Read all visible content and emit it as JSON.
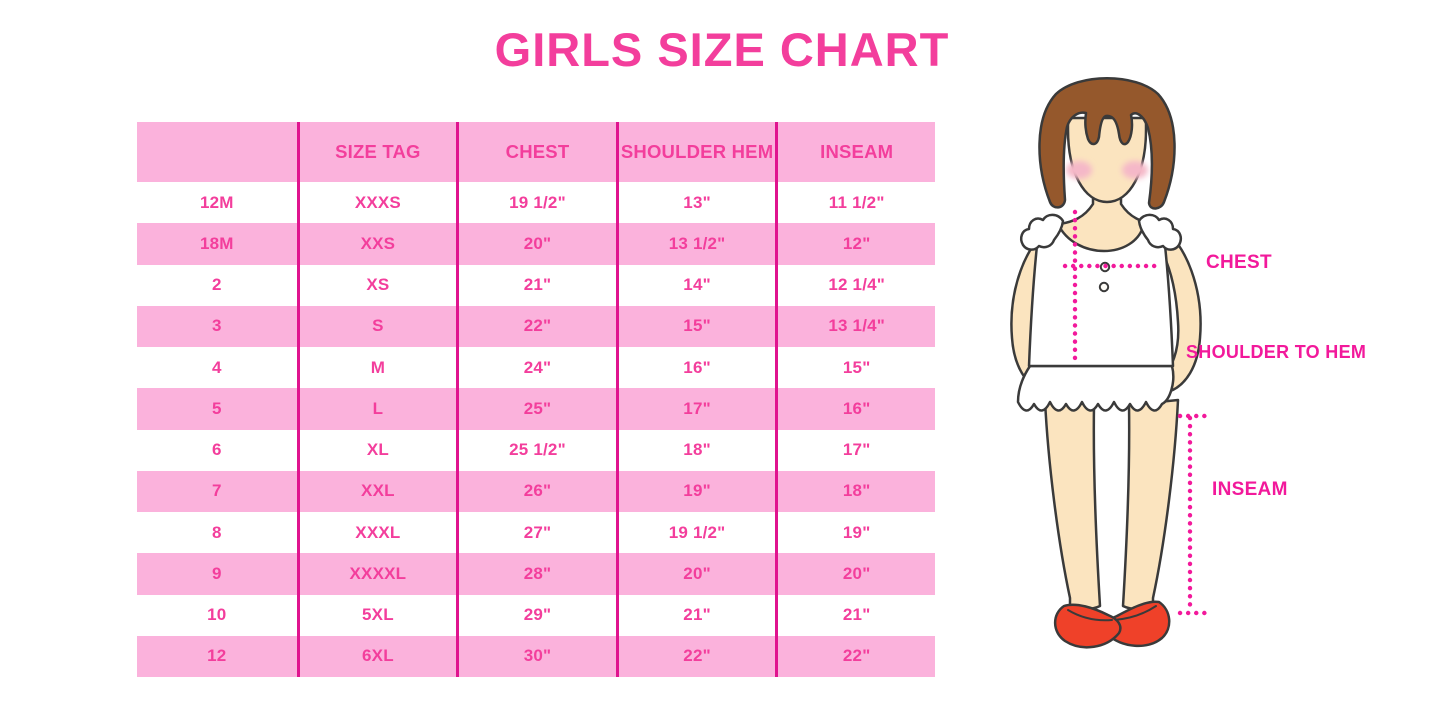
{
  "chart_data": {
    "type": "table",
    "title": "GIRLS SIZE CHART",
    "columns": [
      "",
      "SIZE TAG",
      "CHEST",
      "SHOULDER HEM",
      "INSEAM"
    ],
    "rows": [
      [
        "12M",
        "XXXS",
        "19 1/2\"",
        "13\"",
        "11 1/2\""
      ],
      [
        "18M",
        "XXS",
        "20\"",
        "13 1/2\"",
        "12\""
      ],
      [
        "2",
        "XS",
        "21\"",
        "14\"",
        "12 1/4\""
      ],
      [
        "3",
        "S",
        "22\"",
        "15\"",
        "13 1/4\""
      ],
      [
        "4",
        "M",
        "24\"",
        "16\"",
        "15\""
      ],
      [
        "5",
        "L",
        "25\"",
        "17\"",
        "16\""
      ],
      [
        "6",
        "XL",
        "25 1/2\"",
        "18\"",
        "17\""
      ],
      [
        "7",
        "XXL",
        "26\"",
        "19\"",
        "18\""
      ],
      [
        "8",
        "XXXL",
        "27\"",
        "19 1/2\"",
        "19\""
      ],
      [
        "9",
        "XXXXL",
        "28\"",
        "20\"",
        "20\""
      ],
      [
        "10",
        "5XL",
        "29\"",
        "21\"",
        "21\""
      ],
      [
        "12",
        "6XL",
        "30\"",
        "22\"",
        "22\""
      ]
    ],
    "layout": {
      "header_background": "#FBB2DC",
      "alternating_rows": [
        "#FFFFFF",
        "#FBB2DC"
      ],
      "column_separator_color": "#E0148F"
    }
  },
  "figure": {
    "labels": {
      "chest": "CHEST",
      "shoulder_to_hem": "SHOULDER TO HEM",
      "inseam": "INSEAM"
    }
  },
  "colors": {
    "accent_pink": "#F33E9C",
    "row_pink": "#FBB2DC",
    "separator_magenta": "#E0148F",
    "dotted_line_magenta": "#F2199B",
    "hair_brown": "#95582C",
    "skin_tone": "#FBE4BF",
    "cheek_pink": "#F5B8C8",
    "garment_white": "#FFFFFF",
    "shoe_red": "#EF4129",
    "outline_dark": "#3A3A3A"
  }
}
